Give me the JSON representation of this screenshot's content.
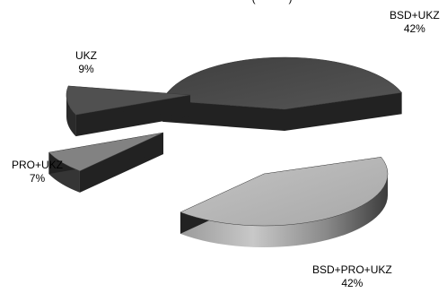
{
  "chart_data": {
    "type": "pie",
    "title": "",
    "exploded_3d": true,
    "slices": [
      {
        "label": "BSD+UKZ",
        "value": 42,
        "value_text": "42%",
        "color": "#4e4e4e"
      },
      {
        "label": "BSD+PRO+UKZ",
        "value": 42,
        "value_text": "42%",
        "color": "#b5b5b5"
      },
      {
        "label": "PRO+UKZ",
        "value": 7,
        "value_text": "7%",
        "color": "#7d7d7d"
      },
      {
        "label": "UKZ",
        "value": 9,
        "value_text": "9%",
        "color": "#5a5a5a"
      }
    ]
  }
}
